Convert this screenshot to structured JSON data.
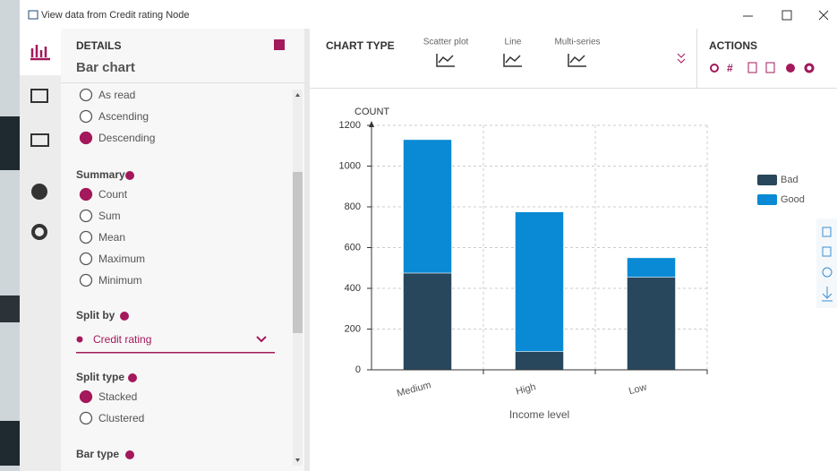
{
  "window": {
    "title": "View data from Credit rating Node"
  },
  "details": {
    "heading": "DETAILS",
    "subtitle": "Bar chart",
    "sort_options": [
      {
        "label": "As read",
        "selected": false
      },
      {
        "label": "Ascending",
        "selected": false
      },
      {
        "label": "Descending",
        "selected": true
      }
    ],
    "summary": {
      "label": "Summary",
      "options": [
        {
          "label": "Count",
          "selected": true
        },
        {
          "label": "Sum",
          "selected": false
        },
        {
          "label": "Mean",
          "selected": false
        },
        {
          "label": "Maximum",
          "selected": false
        },
        {
          "label": "Minimum",
          "selected": false
        }
      ]
    },
    "split_by": {
      "label": "Split by",
      "value": "Credit rating"
    },
    "split_type": {
      "label": "Split type",
      "options": [
        {
          "label": "Stacked",
          "selected": true
        },
        {
          "label": "Clustered",
          "selected": false
        }
      ]
    },
    "bar_type": {
      "label": "Bar type"
    }
  },
  "chart_type": {
    "label": "CHART TYPE",
    "options": [
      "Scatter plot",
      "Line",
      "Multi-series"
    ]
  },
  "actions": {
    "label": "ACTIONS"
  },
  "chart_data": {
    "type": "bar",
    "stacked": true,
    "y_label": "COUNT",
    "x_label": "Income level",
    "categories": [
      "Medium",
      "High",
      "Low"
    ],
    "series": [
      {
        "name": "Bad",
        "color": "#29475c",
        "values": [
          475,
          90,
          455
        ]
      },
      {
        "name": "Good",
        "color": "#0a8ad4",
        "values": [
          655,
          685,
          95
        ]
      }
    ],
    "ylim": [
      0,
      1200
    ],
    "yticks": [
      0,
      200,
      400,
      600,
      800,
      1000,
      1200
    ],
    "grid": true
  }
}
